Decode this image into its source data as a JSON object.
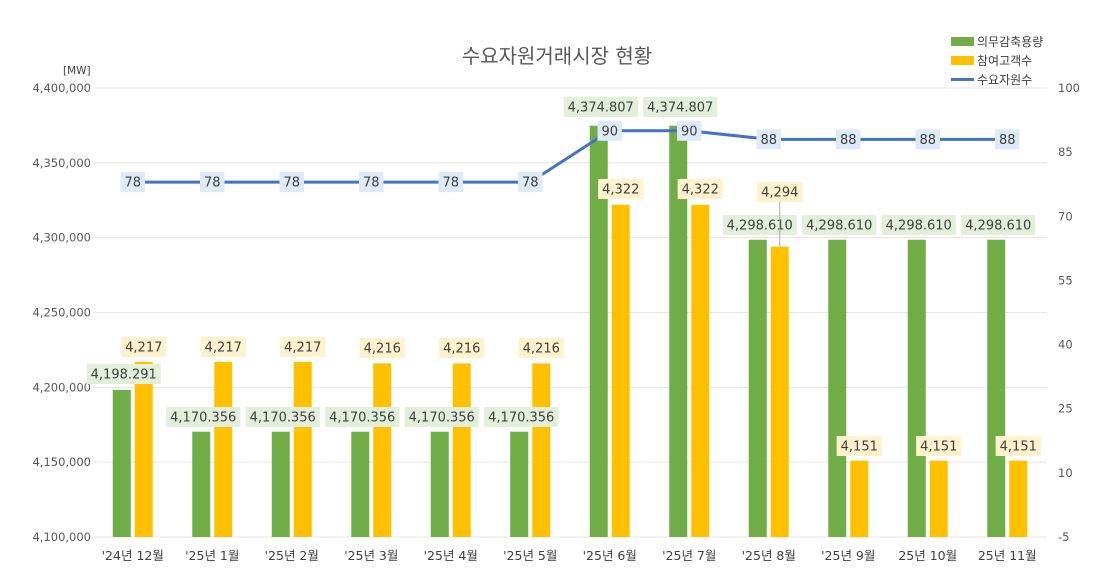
{
  "chart_data": {
    "type": "bar",
    "title": "수요자원거래시장 현황",
    "y_unit": "[MW]",
    "categories": [
      "'24년 12월",
      "'25년 1월",
      "'25년 2월",
      "'25년 3월",
      "'25년 4월",
      "'25년 5월",
      "'25년 6월",
      "'25년 7월",
      "'25년 8월",
      "'25년 9월",
      "25년 10월",
      "25년 11월"
    ],
    "ylim": [
      4100000,
      4400000
    ],
    "yticks": [
      "4,100,000",
      "4,150,000",
      "4,200,000",
      "4,250,000",
      "4,300,000",
      "4,350,000",
      "4,400,000"
    ],
    "y2lim": [
      -5,
      100
    ],
    "y2ticks": [
      "-5",
      "10",
      "25",
      "40",
      "55",
      "70",
      "85",
      "100"
    ],
    "grid": true,
    "legend_position": "top-right",
    "series": [
      {
        "name": "의무감축용량",
        "type": "bar",
        "axis": "left",
        "color": "#70AD47",
        "label_bg": "#E2EFDA",
        "values": [
          4198291,
          4170356,
          4170356,
          4170356,
          4170356,
          4170356,
          4374807,
          4374807,
          4298610,
          4298610,
          4298610,
          4298610
        ],
        "labels": [
          "4,198.291",
          "4,170.356",
          "4,170.356",
          "4,170.356",
          "4,170.356",
          "4,170.356",
          "4,374.807",
          "4,374.807",
          "4,298.610",
          "4,298.610",
          "4,298.610",
          "4,298.610"
        ]
      },
      {
        "name": "참여고객수",
        "type": "bar",
        "axis": "left",
        "color": "#FFC000",
        "label_bg": "#FFF2CC",
        "values": [
          4217000,
          4217000,
          4217000,
          4216000,
          4216000,
          4216000,
          4322000,
          4322000,
          4294000,
          4151000,
          4151000,
          4151000
        ],
        "labels": [
          "4,217",
          "4,217",
          "4,217",
          "4,216",
          "4,216",
          "4,216",
          "4,322",
          "4,322",
          "4,294",
          "4,151",
          "4,151",
          "4,151"
        ]
      },
      {
        "name": "수요자원수",
        "type": "line",
        "axis": "right",
        "color": "#4472C4",
        "label_bg": "#DEEAF7",
        "values": [
          78,
          78,
          78,
          78,
          78,
          78,
          90,
          90,
          88,
          88,
          88,
          88
        ],
        "labels": [
          "78",
          "78",
          "78",
          "78",
          "78",
          "78",
          "90",
          "90",
          "88",
          "88",
          "88",
          "88"
        ]
      }
    ]
  }
}
